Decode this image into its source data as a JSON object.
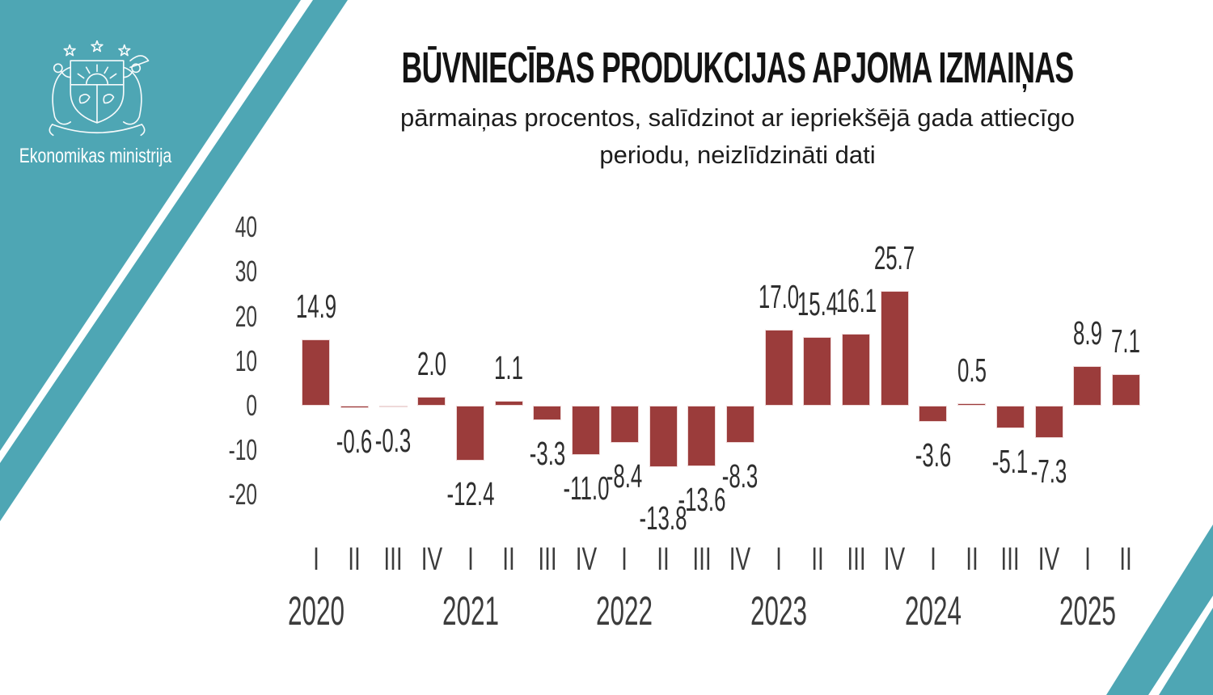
{
  "header": {
    "title": "BŪVNIECĪBAS PRODUKCIJAS APJOMA IZMAIŅAS",
    "subtitle_line1": "pārmaiņas procentos, salīdzinot ar iepriekšējā gada attiecīgo",
    "subtitle_line2": "periodu, neizlīdzināti dati"
  },
  "logo": {
    "ministry_name": "Ekonomikas ministrija"
  },
  "theme": {
    "teal": "#4EA6B4",
    "bar_color": "#9B3C3B",
    "bar_border": "#EFD9D9",
    "title_color": "#131313",
    "axis_text_color": "#3C3C3C",
    "background": "#FFFFFF"
  },
  "chart_data": {
    "type": "bar",
    "title": "Būvniecības produkcijas apjoma izmaiņas",
    "unit": "percent, year-on-year, unadjusted",
    "quarters": [
      "I",
      "II",
      "III",
      "IV",
      "I",
      "II",
      "III",
      "IV",
      "I",
      "II",
      "III",
      "IV",
      "I",
      "II",
      "III",
      "IV",
      "I",
      "II",
      "III",
      "IV",
      "I",
      "II"
    ],
    "years": [
      "2020",
      "2021",
      "2022",
      "2023",
      "2024",
      "2025"
    ],
    "quarters_per_year": [
      4,
      4,
      4,
      4,
      4,
      2
    ],
    "values": [
      14.9,
      -0.6,
      -0.3,
      2.0,
      -12.4,
      1.1,
      -3.3,
      -11.0,
      -8.4,
      -13.8,
      -13.6,
      -8.3,
      17.0,
      15.4,
      16.1,
      25.7,
      -3.6,
      0.5,
      -5.1,
      -7.3,
      8.9,
      7.1
    ],
    "yticks": [
      40,
      30,
      20,
      10,
      0,
      -10,
      -20
    ],
    "ylim": [
      -25,
      45
    ],
    "grid": false,
    "legend": null,
    "value_labels": true
  }
}
